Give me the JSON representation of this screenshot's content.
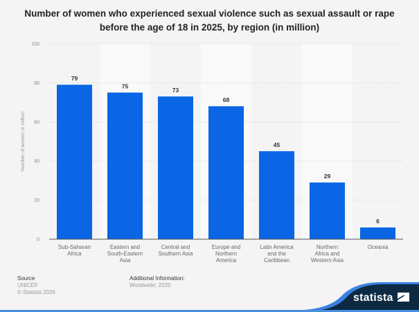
{
  "chart_data": {
    "type": "bar",
    "title": "Number of women who experienced sexual violence such as sexual assault or rape before the age of 18 in 2025, by region (in million)",
    "title_lines": [
      "Number of women who experienced sexual violence such as sexual assault or rape",
      "before the age of 18 in 2025, by region (in million)"
    ],
    "categories": [
      [
        "Sub-Saharan",
        "Africa"
      ],
      [
        "Eastern and",
        "South-Eastern",
        "Asia"
      ],
      [
        "Central and",
        "Southern Asia"
      ],
      [
        "Europe and",
        "Northern",
        "America"
      ],
      [
        "Latin America",
        "and the",
        "Caribbean"
      ],
      [
        "Northern",
        "Africa and",
        "Western Asia"
      ],
      [
        "Oceania"
      ]
    ],
    "values": [
      79,
      75,
      73,
      68,
      45,
      29,
      6
    ],
    "xlabel": "",
    "ylabel": "Number of women in million",
    "ylim": [
      0,
      100
    ],
    "yticks": [
      0,
      20,
      40,
      60,
      80,
      100
    ],
    "grid": true,
    "bar_color": "#0a66e4"
  },
  "footer": {
    "source_label": "Source",
    "source_value": "UNICEF",
    "copyright": "© Statista 2026",
    "additional_label": "Additional Information:",
    "additional_value": "Worldwide; 2025",
    "brand": "statista"
  },
  "colors": {
    "background": "#f4f4f4",
    "alt_column": "#f9f9f9",
    "logo_navy": "#0d2a43",
    "logo_blue": "#3b82e0"
  }
}
